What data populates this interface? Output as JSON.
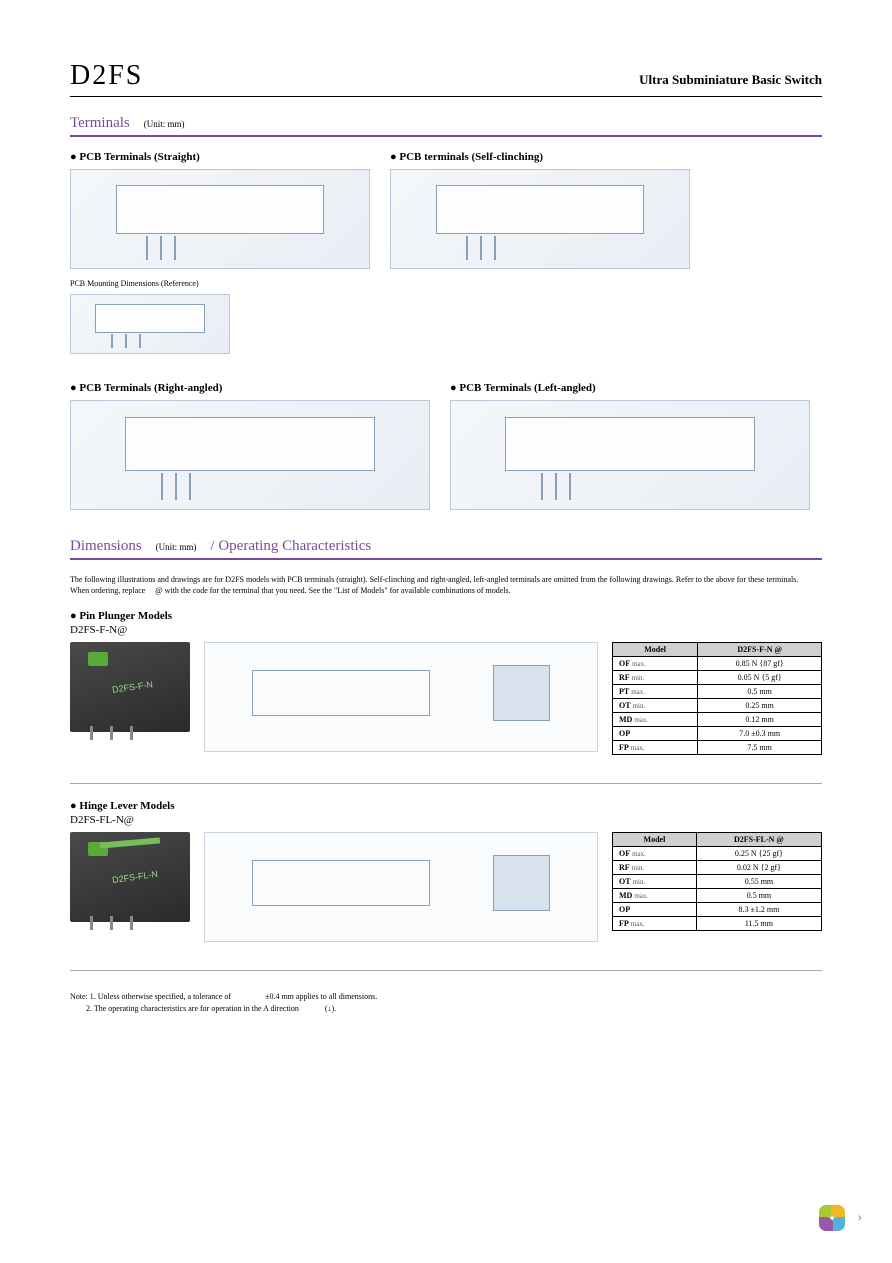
{
  "header": {
    "product_code": "D2FS",
    "product_title": "Ultra Subminiature Basic Switch"
  },
  "section_terminals": {
    "title": "Terminals",
    "unit": "(Unit: mm)",
    "blocks": [
      {
        "label": "● PCB Terminals (Straight)"
      },
      {
        "label": "● PCB terminals (Self-clinching)"
      },
      {
        "label_small": "PCB Mounting Dimensions (Reference)"
      },
      {
        "label": "● PCB Terminals (Right-angled)"
      },
      {
        "label": "● PCB Terminals (Left-angled)"
      }
    ]
  },
  "section_dimensions": {
    "title": "Dimensions",
    "unit": "(Unit: mm)",
    "sub": "/ Operating Characteristics",
    "note1": "The following illustrations and drawings are for D2FS models with PCB terminals (straight). Self-clinching and right-angled, left-angled terminals are omitted from the following drawings. Refer to the above for these terminals.",
    "note2": "When ordering, replace     @ with the code for the terminal that you need. See the \"List of Models\" for available combinations of models."
  },
  "model_pin_plunger": {
    "label": "● Pin Plunger Models",
    "partnum": "D2FS-F-N@",
    "photo_text": "D2FS-F-N",
    "table": {
      "header_model": "Model",
      "header_value": "D2FS-F-N @",
      "rows": [
        {
          "param": "OF",
          "sub": "max.",
          "val": "0.85 N {87 gf}"
        },
        {
          "param": "RF",
          "sub": "min.",
          "val": "0.05 N {5 gf}"
        },
        {
          "param": "PT",
          "sub": "max.",
          "val": "0.5 mm"
        },
        {
          "param": "OT",
          "sub": "min.",
          "val": "0.25 mm"
        },
        {
          "param": "MD",
          "sub": "max.",
          "val": "0.12 mm"
        },
        {
          "param": "OP",
          "sub": "",
          "val": "7.0 ±0.3 mm"
        },
        {
          "param": "FP",
          "sub": "max.",
          "val": "7.5 mm"
        }
      ]
    }
  },
  "model_hinge_lever": {
    "label": "● Hinge Lever Models",
    "partnum": "D2FS-FL-N@",
    "photo_text": "D2FS-FL-N",
    "table": {
      "header_model": "Model",
      "header_value": "D2FS-FL-N @",
      "rows": [
        {
          "param": "OF",
          "sub": "max.",
          "val": "0.25 N {25 gf}"
        },
        {
          "param": "RF",
          "sub": "min.",
          "val": "0.02 N {2 gf}"
        },
        {
          "param": "OT",
          "sub": "min.",
          "val": "0.55 mm"
        },
        {
          "param": "MD",
          "sub": "max.",
          "val": "0.5 mm"
        },
        {
          "param": "OP",
          "sub": "",
          "val": "8.3 ±1.2 mm"
        },
        {
          "param": "FP",
          "sub": "max.",
          "val": "11.5 mm"
        }
      ]
    }
  },
  "footer": {
    "note1": "Note: 1. Unless otherwise specified, a tolerance of                 ±0.4 mm applies to all dimensions.",
    "note2": "        2. The operating characteristics are for operation in the A direction             (↓)."
  },
  "styling": {
    "accent_color": "#7a4a9a",
    "diagram_border": "#b8c8d8",
    "table_header_bg": "#d0d0d0",
    "fonts": {
      "body": "Times New Roman",
      "product_code_size": 28,
      "section_title_size": 15
    }
  }
}
